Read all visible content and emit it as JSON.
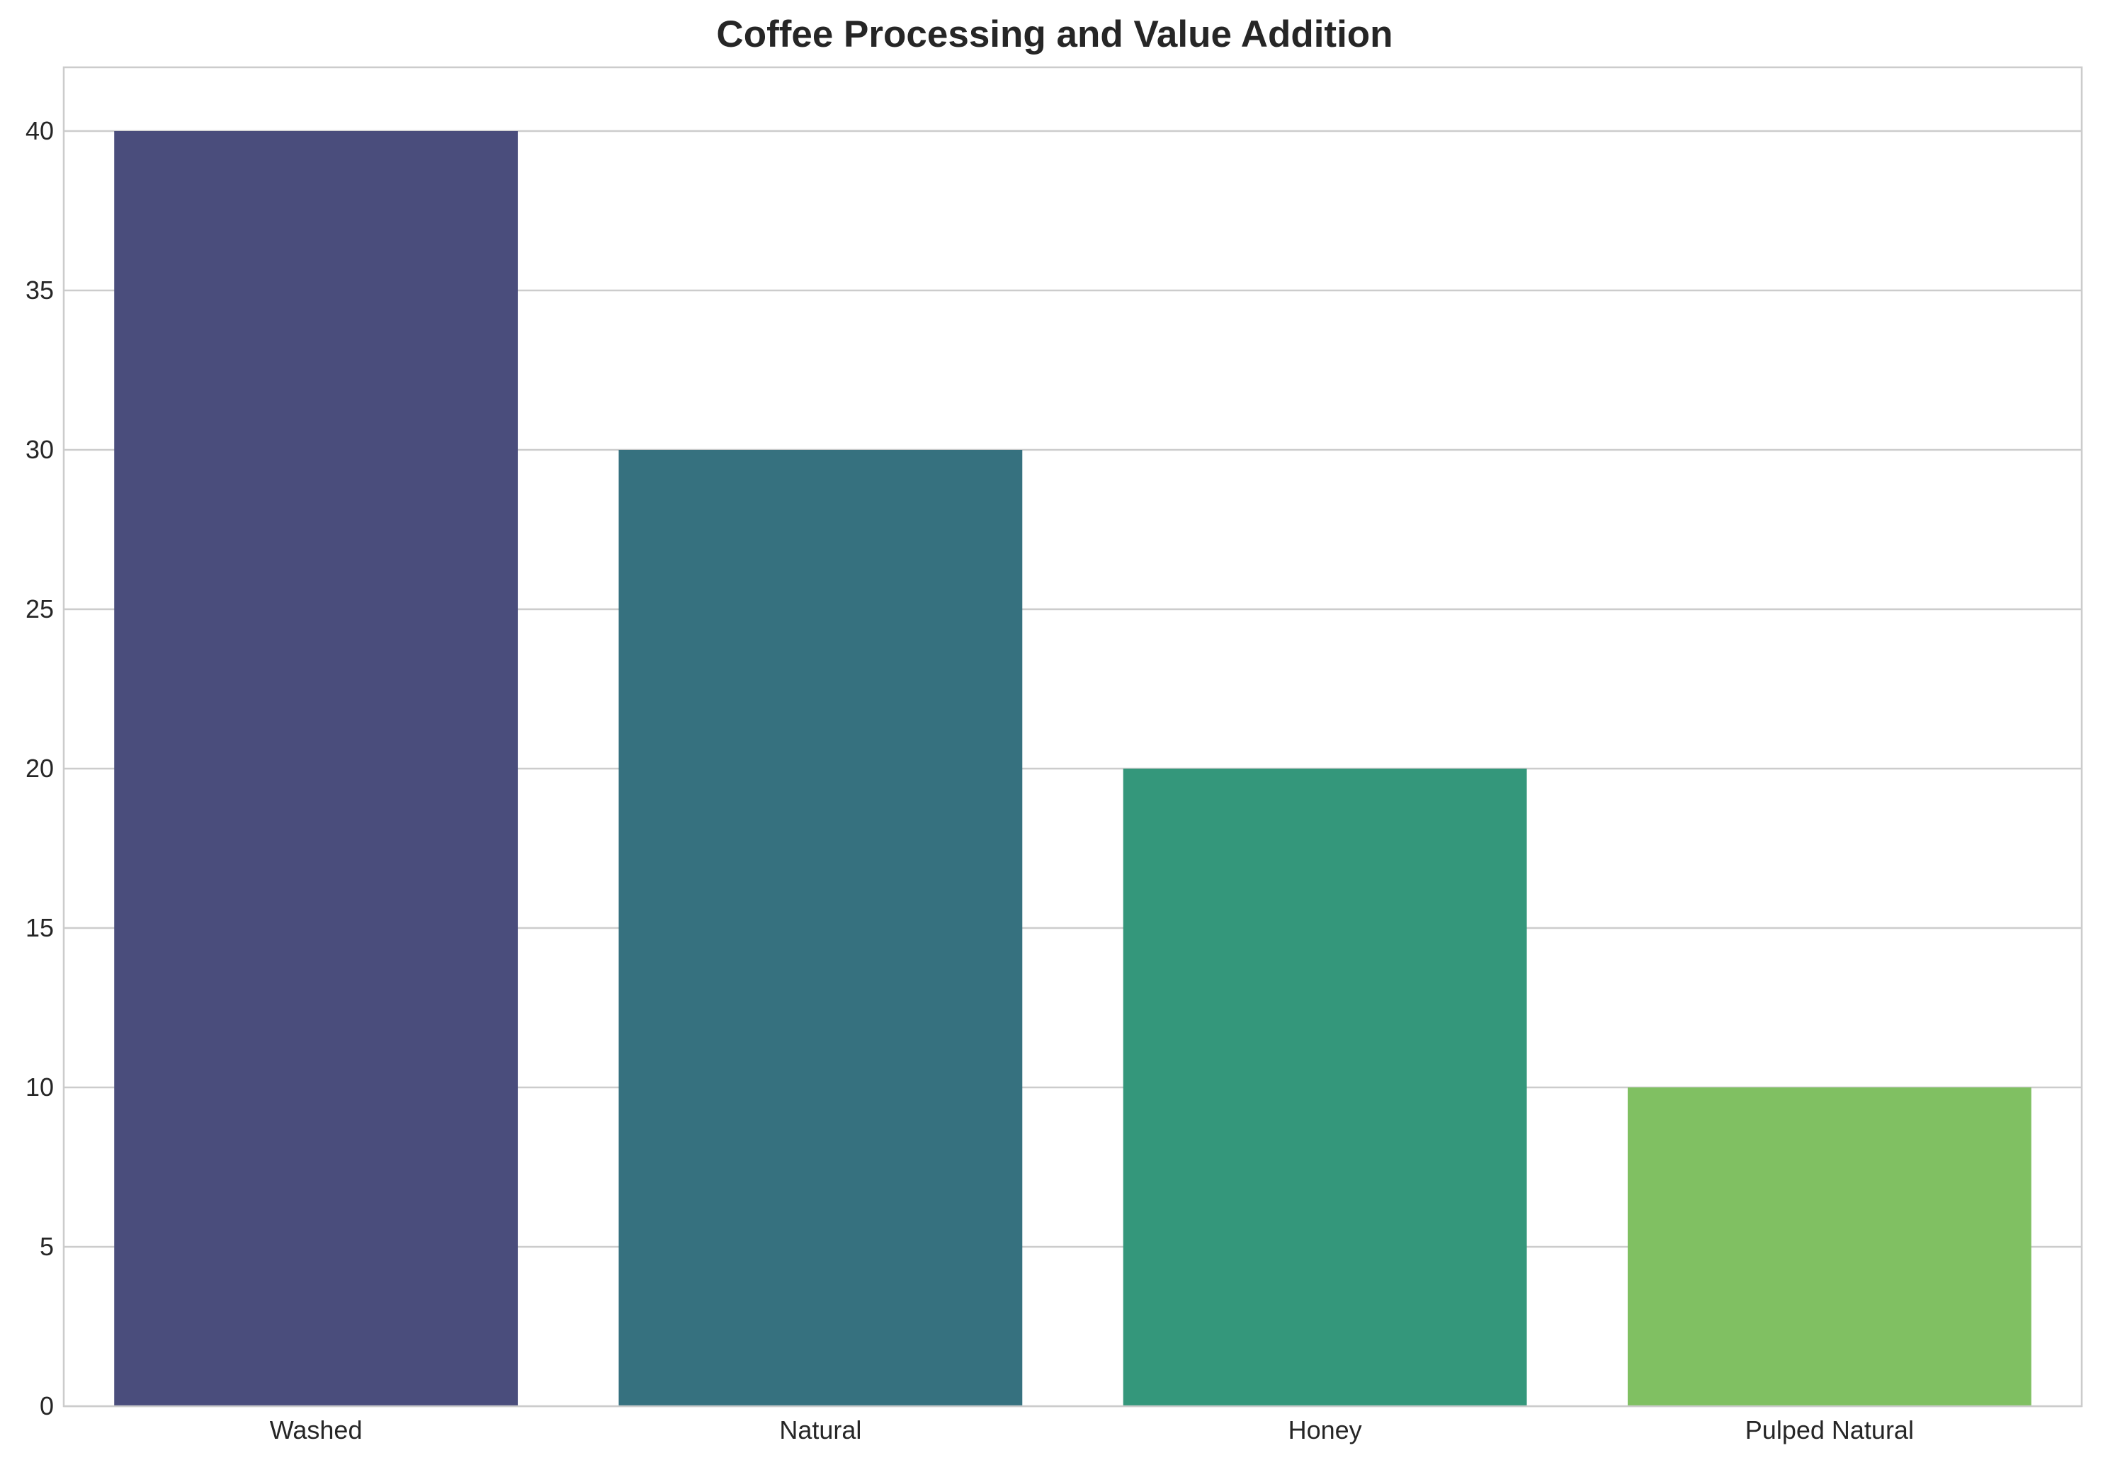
{
  "chart_data": {
    "type": "bar",
    "title": "Coffee Processing and Value Addition",
    "xlabel": "",
    "ylabel": "",
    "categories": [
      "Washed",
      "Natural",
      "Honey",
      "Pulped Natural"
    ],
    "values": [
      40,
      30,
      20,
      10
    ],
    "colors": [
      "#4a4d7c",
      "#36717f",
      "#34977b",
      "#80c062"
    ],
    "ylim": [
      0,
      42
    ],
    "yticks": [
      0,
      5,
      10,
      15,
      20,
      25,
      30,
      35,
      40
    ],
    "grid": true,
    "legend": "none"
  }
}
